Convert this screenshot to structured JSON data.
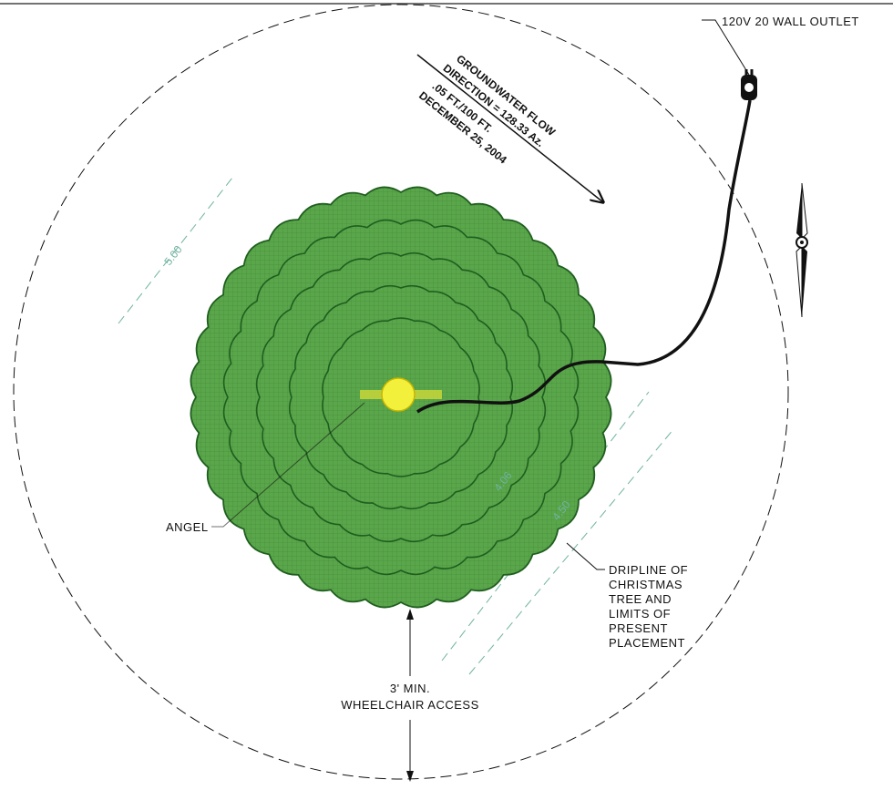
{
  "labels": {
    "outlet": "120V 20 WALL OUTLET",
    "angel": "ANGEL",
    "dripline": [
      "DRIPLINE OF",
      "CHRISTMAS",
      "TREE AND",
      "LIMITS OF",
      "PRESENT",
      "PLACEMENT"
    ],
    "wheelchair": [
      "3' MIN.",
      "WHEELCHAIR ACCESS"
    ],
    "groundwater": [
      "GROUNDWATER FLOW",
      "DIRECTION = 128.33 Az.",
      ".05 FT./100 FT.",
      "DECEMBER 25, 2004"
    ]
  },
  "dimensions": {
    "outer_radius": "5.00",
    "inner_a": "4.06",
    "inner_b": "4.50"
  },
  "colors": {
    "tree_fill": "#5aa64a",
    "tree_edge": "#1f5e1f",
    "angel_fill": "#f2f03a",
    "dimension_line": "#6fb3a0",
    "linework": "#111111"
  },
  "icons": {
    "outlet": "outlet-plug-icon",
    "north_arrow": "north-arrow-icon"
  }
}
